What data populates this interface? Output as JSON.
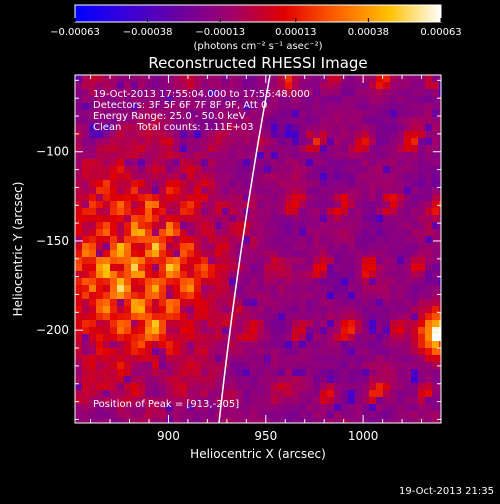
{
  "chart_data": {
    "type": "heatmap",
    "title": "Reconstructed RHESSI Image",
    "xlabel": "Heliocentric X (arcsec)",
    "ylabel": "Heliocentric Y (arcsec)",
    "xlim": [
      852,
      1040
    ],
    "ylim": [
      -252,
      -57
    ],
    "x_ticks": [
      900,
      950,
      1000
    ],
    "y_ticks": [
      -100,
      -150,
      -200
    ],
    "x_tick_labels": [
      "900",
      "950",
      "1000"
    ],
    "y_tick_labels": [
      "−100",
      "−150",
      "−200"
    ],
    "colorbar": {
      "range": [
        -0.00063,
        0.00063
      ],
      "ticks": [
        -0.00063,
        -0.00038,
        -0.00013,
        0.00013,
        0.00038,
        0.00063
      ],
      "tick_labels": [
        "−0.00063",
        "−0.00038",
        "−0.00013",
        "0.00013",
        "0.00038",
        "0.00063"
      ],
      "unit_label": "(photons cm⁻² s⁻¹ asec⁻²)",
      "colors": [
        "#0000ff",
        "#3a00d8",
        "#6a00a0",
        "#a0006a",
        "#e00000",
        "#ff6000",
        "#ffc000",
        "#ffffff"
      ]
    },
    "annotations": {
      "time_range": "19-Oct-2013 17:55:04.000 to 17:55:48.000",
      "detectors": "Detectors: 3F 5F 6F 7F 8F 9F, Att 0",
      "energy": "Energy Range: 25.0 - 50.0 keV",
      "clean": "Clean     Total counts: 1.11E+03",
      "peak": "Position of Peak = [913,-205]"
    },
    "limb": "solar limb arc",
    "peak": {
      "x": 913,
      "y": -205
    }
  },
  "footer": {
    "timestamp": "19-Oct-2013 21:35"
  }
}
